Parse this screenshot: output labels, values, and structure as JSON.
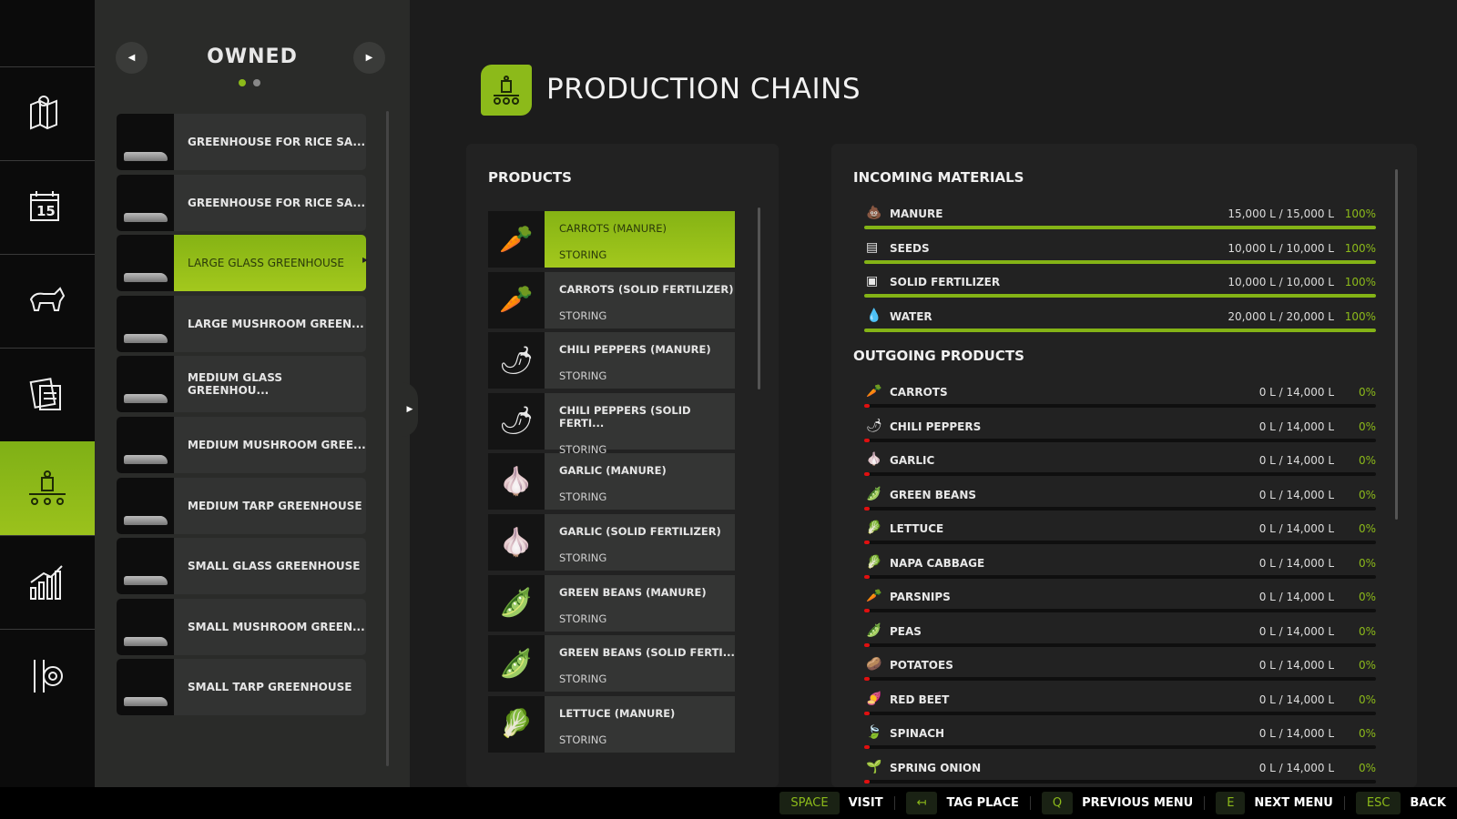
{
  "nav": {
    "items": [
      {
        "icon": "map-icon"
      },
      {
        "icon": "calendar-icon",
        "text": "15"
      },
      {
        "icon": "animals-icon"
      },
      {
        "icon": "contracts-icon"
      },
      {
        "icon": "production-icon",
        "active": true
      },
      {
        "icon": "statistics-icon"
      },
      {
        "icon": "settings-icon"
      }
    ]
  },
  "owned": {
    "title": "OWNED",
    "page": 1,
    "pages": 2,
    "items": [
      {
        "label": "GREENHOUSE FOR RICE SA..."
      },
      {
        "label": "GREENHOUSE FOR RICE SA..."
      },
      {
        "label": "LARGE GLASS GREENHOUSE",
        "selected": true
      },
      {
        "label": "LARGE MUSHROOM GREEN..."
      },
      {
        "label": "MEDIUM GLASS GREENHOU..."
      },
      {
        "label": "MEDIUM MUSHROOM GREE..."
      },
      {
        "label": "MEDIUM TARP GREENHOUSE"
      },
      {
        "label": "SMALL GLASS GREENHOUSE"
      },
      {
        "label": "SMALL MUSHROOM GREEN..."
      },
      {
        "label": "SMALL TARP GREENHOUSE"
      }
    ]
  },
  "header": {
    "title": "PRODUCTION CHAINS"
  },
  "products": {
    "title": "PRODUCTS",
    "items": [
      {
        "name": "CARROTS (MANURE)",
        "status": "STORING",
        "icon": "🥕",
        "selected": true
      },
      {
        "name": "CARROTS (SOLID FERTILIZER)",
        "status": "STORING",
        "icon": "🥕"
      },
      {
        "name": "CHILI PEPPERS (MANURE)",
        "status": "STORING",
        "icon": "🌶"
      },
      {
        "name": "CHILI PEPPERS (SOLID FERTI...",
        "status": "STORING",
        "icon": "🌶"
      },
      {
        "name": "GARLIC (MANURE)",
        "status": "STORING",
        "icon": "🧄"
      },
      {
        "name": "GARLIC (SOLID FERTILIZER)",
        "status": "STORING",
        "icon": "🧄"
      },
      {
        "name": "GREEN BEANS (MANURE)",
        "status": "STORING",
        "icon": "🫛"
      },
      {
        "name": "GREEN BEANS (SOLID FERTI...",
        "status": "STORING",
        "icon": "🫛"
      },
      {
        "name": "LETTUCE (MANURE)",
        "status": "STORING",
        "icon": "🥬"
      }
    ]
  },
  "incoming": {
    "title": "INCOMING MATERIALS",
    "items": [
      {
        "name": "MANURE",
        "value": "15,000 L / 15,000 L",
        "pct": "100%",
        "fill": 100,
        "icon": "💩"
      },
      {
        "name": "SEEDS",
        "value": "10,000 L / 10,000 L",
        "pct": "100%",
        "fill": 100,
        "icon": "▤"
      },
      {
        "name": "SOLID FERTILIZER",
        "value": "10,000 L / 10,000 L",
        "pct": "100%",
        "fill": 100,
        "icon": "▣"
      },
      {
        "name": "WATER",
        "value": "20,000 L / 20,000 L",
        "pct": "100%",
        "fill": 100,
        "icon": "💧"
      }
    ]
  },
  "outgoing": {
    "title": "OUTGOING PRODUCTS",
    "items": [
      {
        "name": "CARROTS",
        "value": "0 L / 14,000 L",
        "pct": "0%",
        "fill": 0,
        "icon": "🥕"
      },
      {
        "name": "CHILI PEPPERS",
        "value": "0 L / 14,000 L",
        "pct": "0%",
        "fill": 0,
        "icon": "🌶"
      },
      {
        "name": "GARLIC",
        "value": "0 L / 14,000 L",
        "pct": "0%",
        "fill": 0,
        "icon": "🧄"
      },
      {
        "name": "GREEN BEANS",
        "value": "0 L / 14,000 L",
        "pct": "0%",
        "fill": 0,
        "icon": "🫛"
      },
      {
        "name": "LETTUCE",
        "value": "0 L / 14,000 L",
        "pct": "0%",
        "fill": 0,
        "icon": "🥬"
      },
      {
        "name": "NAPA CABBAGE",
        "value": "0 L / 14,000 L",
        "pct": "0%",
        "fill": 0,
        "icon": "🥬"
      },
      {
        "name": "PARSNIPS",
        "value": "0 L / 14,000 L",
        "pct": "0%",
        "fill": 0,
        "icon": "🥕"
      },
      {
        "name": "PEAS",
        "value": "0 L / 14,000 L",
        "pct": "0%",
        "fill": 0,
        "icon": "🫛"
      },
      {
        "name": "POTATOES",
        "value": "0 L / 14,000 L",
        "pct": "0%",
        "fill": 0,
        "icon": "🥔"
      },
      {
        "name": "RED BEET",
        "value": "0 L / 14,000 L",
        "pct": "0%",
        "fill": 0,
        "icon": "🍠"
      },
      {
        "name": "SPINACH",
        "value": "0 L / 14,000 L",
        "pct": "0%",
        "fill": 0,
        "icon": "🍃"
      },
      {
        "name": "SPRING ONION",
        "value": "0 L / 14,000 L",
        "pct": "0%",
        "fill": 0,
        "icon": "🌱"
      }
    ]
  },
  "footer": [
    {
      "key": "SPACE",
      "label": "VISIT"
    },
    {
      "key": "↤",
      "label": "TAG PLACE"
    },
    {
      "key": "Q",
      "label": "PREVIOUS MENU"
    },
    {
      "key": "E",
      "label": "NEXT MENU"
    },
    {
      "key": "ESC",
      "label": "BACK"
    }
  ],
  "colors": {
    "accent": "#8cba1a",
    "empty": "#e01010"
  }
}
